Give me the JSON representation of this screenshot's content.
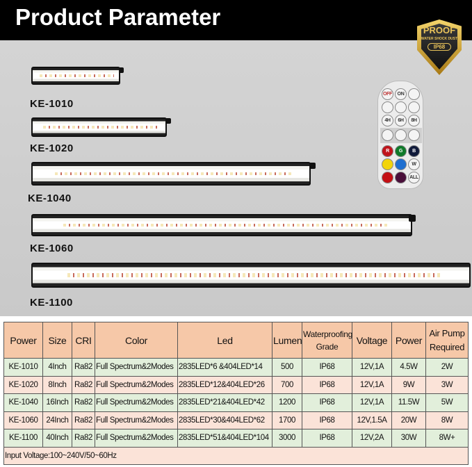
{
  "header": {
    "title": "Product Parameter"
  },
  "badge": {
    "line1": "PROOF",
    "line2": "WATER SHOCK DUST",
    "line3": "IP68",
    "color": "#d9aa3a"
  },
  "products": [
    "KE-1010",
    "KE-1020",
    "KE-1040",
    "KE-1060",
    "KE-1100"
  ],
  "remote": {
    "buttons": [
      "OFF",
      "ON",
      "4H",
      "6H",
      "8H",
      "R",
      "G",
      "B",
      "W",
      "ALL"
    ],
    "colors": [
      "#c0141b",
      "#0f7a2a",
      "#101a3a",
      "#f2d40a",
      "#1f6fd0",
      "#ffffff",
      "#c40f14",
      "#4a0f3a",
      "#ffffff"
    ]
  },
  "table": {
    "headers": [
      "Power",
      "Size",
      "CRI",
      "Color",
      "Led",
      "Lumen",
      "Waterproofing Grade",
      "Voltage",
      "Power",
      "Air Pump Required"
    ],
    "rows": [
      [
        "KE-1010",
        "4Inch",
        "Ra82",
        "Full Spectrum&2Modes",
        "2835LED*6  &404LED*14",
        "500",
        "IP68",
        "12V,1A",
        "4.5W",
        "2W"
      ],
      [
        "KE-1020",
        "8Inch",
        "Ra82",
        "Full Spectrum&2Modes",
        "2835LED*12&404LED*26",
        "700",
        "IP68",
        "12V,1A",
        "9W",
        "3W"
      ],
      [
        "KE-1040",
        "16Inch",
        "Ra82",
        "Full Spectrum&2Modes",
        "2835LED*21&404LED*42",
        "1200",
        "IP68",
        "12V,1A",
        "11.5W",
        "5W"
      ],
      [
        "KE-1060",
        "24Inch",
        "Ra82",
        "Full Spectrum&2Modes",
        "2835LED*30&404LED*62",
        "1700",
        "IP68",
        "12V,1.5A",
        "20W",
        "8W"
      ],
      [
        "KE-1100",
        "40Inch",
        "Ra82",
        "Full Spectrum&2Modes",
        "2835LED*51&404LED*104",
        "3000",
        "IP68",
        "12V,2A",
        "30W",
        "8W+"
      ]
    ],
    "footer": "Input Voltage:100~240V/50~60Hz",
    "colors": {
      "header": "#f6c8a8",
      "green_row": "#e2efdb",
      "pink_row": "#fbe3d8"
    }
  }
}
